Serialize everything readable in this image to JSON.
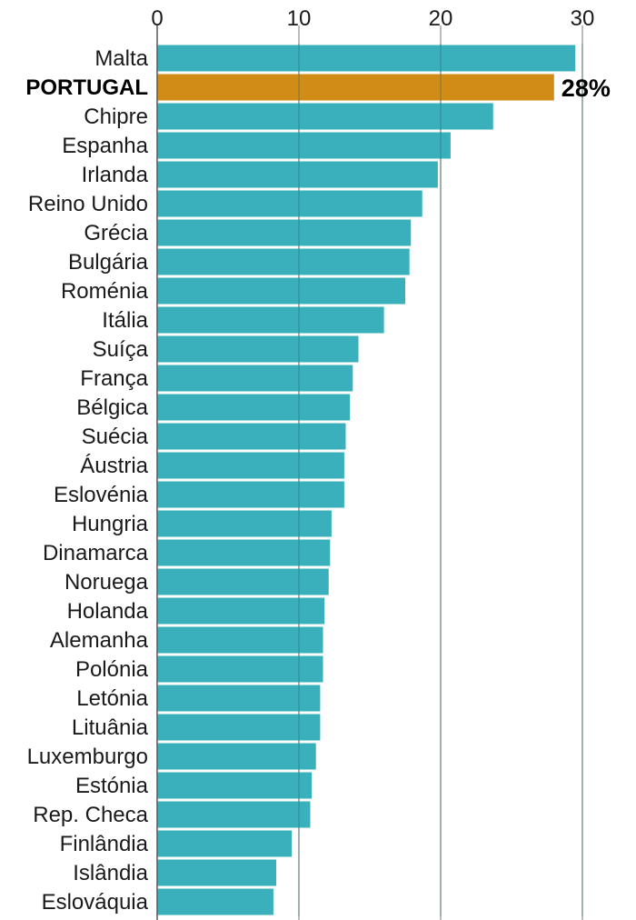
{
  "chart_data": {
    "type": "bar",
    "orientation": "horizontal",
    "title": "",
    "xlabel": "",
    "ylabel": "",
    "xlim": [
      0,
      32.5
    ],
    "x_ticks": [
      0,
      10,
      20,
      30
    ],
    "grid": true,
    "categories": [
      "Malta",
      "PORTUGAL",
      "Chipre",
      "Espanha",
      "Irlanda",
      "Reino Unido",
      "Grécia",
      "Bulgária",
      "Roménia",
      "Itália",
      "Suíça",
      "França",
      "Bélgica",
      "Suécia",
      "Áustria",
      "Eslovénia",
      "Hungria",
      "Dinamarca",
      "Noruega",
      "Holanda",
      "Alemanha",
      "Polónia",
      "Letónia",
      "Lituânia",
      "Luxemburgo",
      "Estónia",
      "Rep. Checa",
      "Finlândia",
      "Islândia",
      "Eslováquia"
    ],
    "values": [
      29.5,
      28,
      23.7,
      20.7,
      19.8,
      18.7,
      17.9,
      17.8,
      17.5,
      16.0,
      14.2,
      13.8,
      13.6,
      13.3,
      13.2,
      13.2,
      12.3,
      12.2,
      12.1,
      11.8,
      11.7,
      11.7,
      11.5,
      11.5,
      11.2,
      10.9,
      10.8,
      9.5,
      8.4,
      8.2
    ],
    "highlight_index": 1,
    "data_labels": [
      {
        "index": 1,
        "text": "28%"
      }
    ],
    "colors": {
      "bar": "#3ab0bc",
      "highlight": "#d08c17",
      "grid": "#8f8f8f",
      "axis": "#555555"
    }
  }
}
